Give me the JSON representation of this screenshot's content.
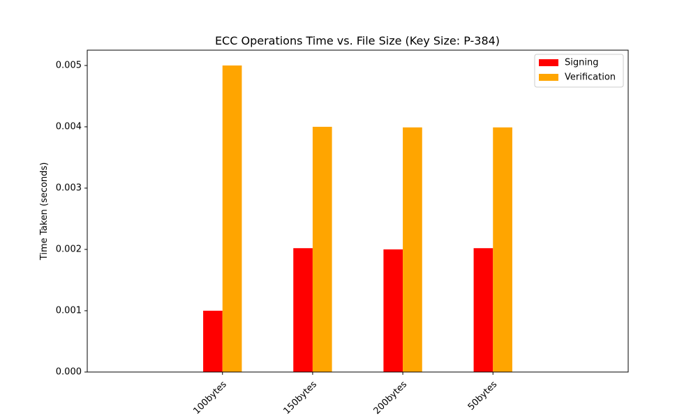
{
  "chart_data": {
    "type": "bar",
    "title": "ECC Operations Time vs. File Size (Key Size: P-384)",
    "xlabel": "",
    "ylabel": "Time Taken (seconds)",
    "categories": [
      "100bytes",
      "150bytes",
      "200bytes",
      "50bytes"
    ],
    "series": [
      {
        "name": "Signing",
        "color": "#ff0000",
        "values": [
          0.001,
          0.00202,
          0.002,
          0.00202
        ]
      },
      {
        "name": "Verification",
        "color": "#ffa500",
        "values": [
          0.005,
          0.004,
          0.00399,
          0.00399
        ]
      }
    ],
    "ylim": [
      0,
      0.00525
    ],
    "yticks": [
      "0.000",
      "0.001",
      "0.002",
      "0.003",
      "0.004",
      "0.005"
    ],
    "xtick_rotation": 45,
    "legend_position": "top-right",
    "grid": false
  }
}
